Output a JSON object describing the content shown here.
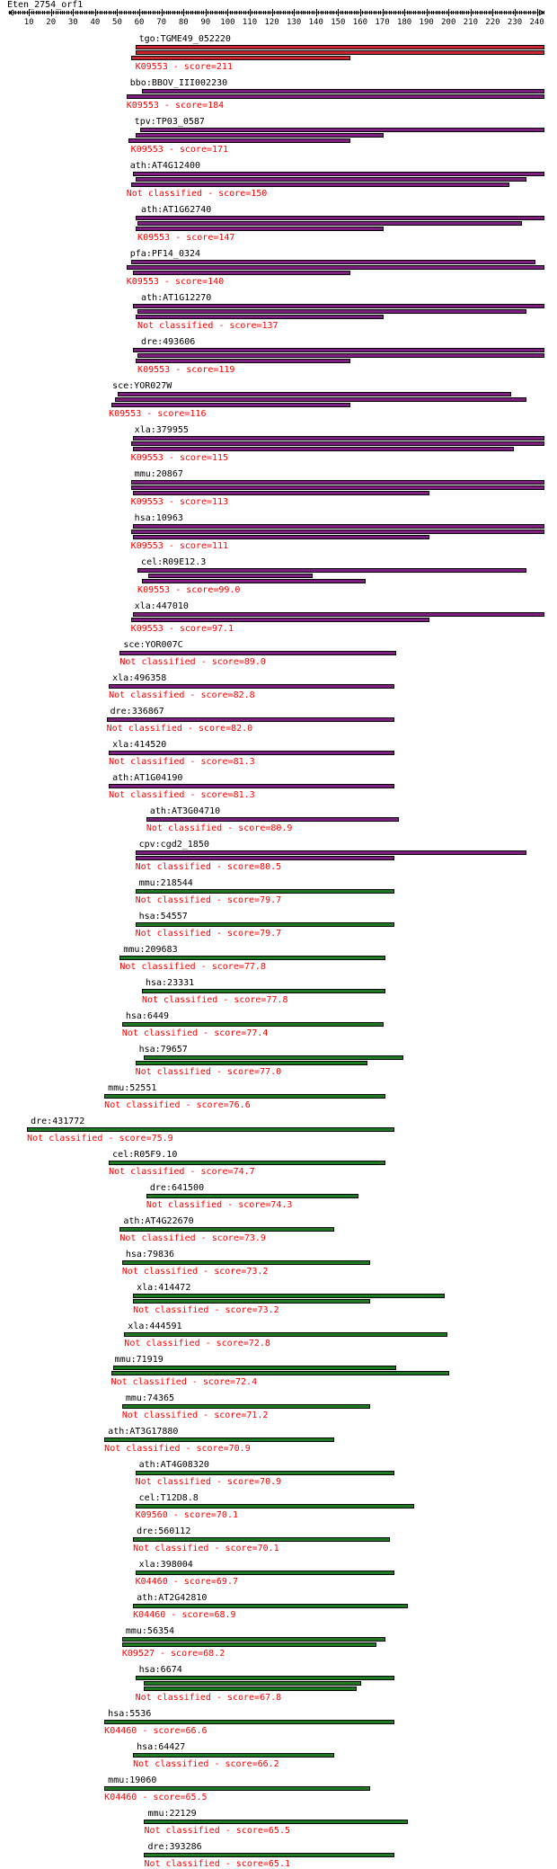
{
  "query_name": "Eten_2754_orf1",
  "axis": {
    "start": 1,
    "end": 243,
    "ticks": [
      10,
      20,
      30,
      40,
      50,
      60,
      70,
      80,
      90,
      100,
      110,
      120,
      130,
      140,
      150,
      160,
      170,
      180,
      190,
      200,
      210,
      220,
      230,
      240
    ]
  },
  "colors": {
    "red": "#c8282d",
    "purple": "#7d1f7e",
    "green": "#1e7a1e",
    "score_text": "#ff0000"
  },
  "hits": [
    {
      "name": "tgo:TGME49_052220",
      "annotation": "K09553 - score=211",
      "color": "red",
      "start": 59,
      "bars": [
        [
          59,
          243
        ],
        [
          59,
          243
        ],
        [
          57,
          155
        ]
      ]
    },
    {
      "name": "bbo:BBOV_III002230",
      "annotation": "K09553 - score=184",
      "color": "purple",
      "start": 55,
      "bars": [
        [
          62,
          243
        ],
        [
          55,
          243
        ]
      ]
    },
    {
      "name": "tpv:TP03_0587",
      "annotation": "K09553 - score=171",
      "color": "purple",
      "start": 57,
      "bars": [
        [
          61,
          243
        ],
        [
          59,
          170
        ],
        [
          56,
          155
        ]
      ]
    },
    {
      "name": "ath:AT4G12400",
      "annotation": "Not classified - score=150",
      "color": "purple",
      "start": 55,
      "bars": [
        [
          58,
          243
        ],
        [
          59,
          235
        ],
        [
          57,
          227
        ]
      ]
    },
    {
      "name": "ath:AT1G62740",
      "annotation": "K09553 - score=147",
      "color": "purple",
      "start": 60,
      "bars": [
        [
          59,
          243
        ],
        [
          60,
          233
        ],
        [
          59,
          170
        ]
      ]
    },
    {
      "name": "pfa:PF14_0324",
      "annotation": "K09553 - score=140",
      "color": "purple",
      "start": 55,
      "bars": [
        [
          57,
          239
        ],
        [
          55,
          243
        ],
        [
          58,
          155
        ]
      ]
    },
    {
      "name": "ath:AT1G12270",
      "annotation": "Not classified - score=137",
      "color": "purple",
      "start": 60,
      "bars": [
        [
          58,
          243
        ],
        [
          60,
          235
        ],
        [
          59,
          170
        ]
      ]
    },
    {
      "name": "dre:493606",
      "annotation": "K09553 - score=119",
      "color": "purple",
      "start": 60,
      "bars": [
        [
          58,
          243
        ],
        [
          60,
          243
        ],
        [
          59,
          155
        ]
      ]
    },
    {
      "name": "sce:YOR027W",
      "annotation": "K09553 - score=116",
      "color": "purple",
      "start": 47,
      "bars": [
        [
          51,
          228
        ],
        [
          50,
          235
        ],
        [
          48,
          155
        ]
      ]
    },
    {
      "name": "xla:379955",
      "annotation": "K09553 - score=115",
      "color": "purple",
      "start": 57,
      "bars": [
        [
          58,
          243
        ],
        [
          57,
          243
        ],
        [
          58,
          229
        ]
      ]
    },
    {
      "name": "mmu:20867",
      "annotation": "K09553 - score=113",
      "color": "purple",
      "start": 57,
      "bars": [
        [
          57,
          243
        ],
        [
          57,
          243
        ],
        [
          58,
          191
        ]
      ]
    },
    {
      "name": "hsa:10963",
      "annotation": "K09553 - score=111",
      "color": "purple",
      "start": 57,
      "bars": [
        [
          58,
          243
        ],
        [
          57,
          243
        ],
        [
          58,
          191
        ]
      ]
    },
    {
      "name": "cel:R09E12.3",
      "annotation": "K09553 - score=99.0",
      "color": "purple",
      "start": 60,
      "bars": [
        [
          60,
          235
        ],
        [
          65,
          138
        ],
        [
          62,
          162
        ]
      ]
    },
    {
      "name": "xla:447010",
      "annotation": "K09553 - score=97.1",
      "color": "purple",
      "start": 57,
      "bars": [
        [
          58,
          243
        ],
        [
          57,
          191
        ]
      ]
    },
    {
      "name": "sce:YOR007C",
      "annotation": "Not classified - score=89.0",
      "color": "purple",
      "start": 52,
      "bars": [
        [
          52,
          176
        ]
      ]
    },
    {
      "name": "xla:496358",
      "annotation": "Not classified - score=82.8",
      "color": "purple",
      "start": 47,
      "bars": [
        [
          47,
          175
        ]
      ]
    },
    {
      "name": "dre:336867",
      "annotation": "Not classified - score=82.0",
      "color": "purple",
      "start": 46,
      "bars": [
        [
          46,
          175
        ]
      ]
    },
    {
      "name": "xla:414520",
      "annotation": "Not classified - score=81.3",
      "color": "purple",
      "start": 47,
      "bars": [
        [
          47,
          175
        ]
      ]
    },
    {
      "name": "ath:AT1G04190",
      "annotation": "Not classified - score=81.3",
      "color": "purple",
      "start": 47,
      "bars": [
        [
          47,
          175
        ]
      ]
    },
    {
      "name": "ath:AT3G04710",
      "annotation": "Not classified - score=80.9",
      "color": "purple",
      "start": 64,
      "bars": [
        [
          64,
          177
        ]
      ]
    },
    {
      "name": "cpv:cgd2_1850",
      "annotation": "Not classified - score=80.5",
      "color": "purple",
      "start": 59,
      "bars": [
        [
          59,
          235
        ],
        [
          59,
          175
        ]
      ]
    },
    {
      "name": "mmu:218544",
      "annotation": "Not classified - score=79.7",
      "color": "green",
      "start": 59,
      "bars": [
        [
          59,
          175
        ]
      ]
    },
    {
      "name": "hsa:54557",
      "annotation": "Not classified - score=79.7",
      "color": "green",
      "start": 59,
      "bars": [
        [
          59,
          175
        ]
      ]
    },
    {
      "name": "mmu:209683",
      "annotation": "Not classified - score=77.8",
      "color": "green",
      "start": 52,
      "bars": [
        [
          52,
          171
        ]
      ]
    },
    {
      "name": "hsa:23331",
      "annotation": "Not classified - score=77.8",
      "color": "green",
      "start": 62,
      "bars": [
        [
          62,
          171
        ]
      ]
    },
    {
      "name": "hsa:6449",
      "annotation": "Not classified - score=77.4",
      "color": "green",
      "start": 53,
      "bars": [
        [
          53,
          170
        ]
      ]
    },
    {
      "name": "hsa:79657",
      "annotation": "Not classified - score=77.0",
      "color": "green",
      "start": 59,
      "bars": [
        [
          63,
          179
        ],
        [
          59,
          163
        ]
      ]
    },
    {
      "name": "mmu:52551",
      "annotation": "Not classified - score=76.6",
      "color": "green",
      "start": 45,
      "bars": [
        [
          45,
          171
        ]
      ]
    },
    {
      "name": "dre:431772",
      "annotation": "Not classified - score=75.9",
      "color": "green",
      "start": 10,
      "bars": [
        [
          10,
          175
        ]
      ]
    },
    {
      "name": "cel:R05F9.10",
      "annotation": "Not classified - score=74.7",
      "color": "green",
      "start": 47,
      "bars": [
        [
          47,
          171
        ]
      ]
    },
    {
      "name": "dre:641500",
      "annotation": "Not classified - score=74.3",
      "color": "green",
      "start": 64,
      "bars": [
        [
          64,
          159
        ]
      ]
    },
    {
      "name": "ath:AT4G22670",
      "annotation": "Not classified - score=73.9",
      "color": "green",
      "start": 52,
      "bars": [
        [
          52,
          148
        ]
      ]
    },
    {
      "name": "hsa:79836",
      "annotation": "Not classified - score=73.2",
      "color": "green",
      "start": 53,
      "bars": [
        [
          53,
          164
        ]
      ]
    },
    {
      "name": "xla:414472",
      "annotation": "Not classified - score=73.2",
      "color": "green",
      "start": 58,
      "bars": [
        [
          58,
          198
        ],
        [
          58,
          164
        ]
      ]
    },
    {
      "name": "xla:444591",
      "annotation": "Not classified - score=72.8",
      "color": "green",
      "start": 54,
      "bars": [
        [
          54,
          199
        ]
      ]
    },
    {
      "name": "mmu:71919",
      "annotation": "Not classified - score=72.4",
      "color": "green",
      "start": 48,
      "bars": [
        [
          49,
          176
        ],
        [
          48,
          200
        ]
      ]
    },
    {
      "name": "mmu:74365",
      "annotation": "Not classified - score=71.2",
      "color": "green",
      "start": 53,
      "bars": [
        [
          53,
          164
        ]
      ]
    },
    {
      "name": "ath:AT3G17880",
      "annotation": "Not classified - score=70.9",
      "color": "green",
      "start": 45,
      "bars": [
        [
          45,
          148
        ]
      ]
    },
    {
      "name": "ath:AT4G08320",
      "annotation": "Not classified - score=70.9",
      "color": "green",
      "start": 59,
      "bars": [
        [
          59,
          175
        ]
      ]
    },
    {
      "name": "cel:T12D8.8",
      "annotation": "K09560 - score=70.1",
      "color": "green",
      "start": 59,
      "bars": [
        [
          59,
          184
        ]
      ]
    },
    {
      "name": "dre:560112",
      "annotation": "Not classified - score=70.1",
      "color": "green",
      "start": 58,
      "bars": [
        [
          58,
          173
        ]
      ]
    },
    {
      "name": "xla:398004",
      "annotation": "K04460 - score=69.7",
      "color": "green",
      "start": 59,
      "bars": [
        [
          59,
          175
        ]
      ]
    },
    {
      "name": "ath:AT2G42810",
      "annotation": "K04460 - score=68.9",
      "color": "green",
      "start": 58,
      "bars": [
        [
          58,
          181
        ]
      ]
    },
    {
      "name": "mmu:56354",
      "annotation": "K09527 - score=68.2",
      "color": "green",
      "start": 53,
      "bars": [
        [
          53,
          171
        ],
        [
          53,
          167
        ]
      ]
    },
    {
      "name": "hsa:6674",
      "annotation": "Not classified - score=67.8",
      "color": "green",
      "start": 59,
      "bars": [
        [
          59,
          175
        ],
        [
          63,
          160
        ],
        [
          63,
          158
        ]
      ]
    },
    {
      "name": "hsa:5536",
      "annotation": "K04460 - score=66.6",
      "color": "green",
      "start": 45,
      "bars": [
        [
          45,
          175
        ]
      ]
    },
    {
      "name": "hsa:64427",
      "annotation": "Not classified - score=66.2",
      "color": "green",
      "start": 58,
      "bars": [
        [
          58,
          148
        ]
      ]
    },
    {
      "name": "mmu:19060",
      "annotation": "K04460 - score=65.5",
      "color": "green",
      "start": 45,
      "bars": [
        [
          45,
          164
        ]
      ]
    },
    {
      "name": "mmu:22129",
      "annotation": "Not classified - score=65.5",
      "color": "green",
      "start": 63,
      "bars": [
        [
          63,
          181
        ]
      ]
    },
    {
      "name": "dre:393286",
      "annotation": "Not classified - score=65.1",
      "color": "green",
      "start": 63,
      "bars": [
        [
          63,
          175
        ]
      ]
    }
  ]
}
